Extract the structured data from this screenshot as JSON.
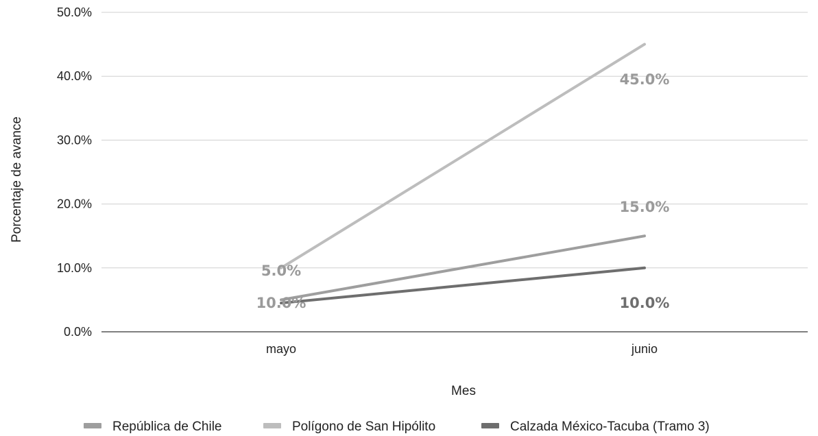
{
  "chart_data": {
    "type": "line",
    "title": "",
    "xlabel": "Mes",
    "ylabel": "Porcentaje de avance",
    "categories": [
      "mayo",
      "junio"
    ],
    "ylim": [
      0,
      0.5
    ],
    "yticks": [
      "0.0%",
      "10.0%",
      "20.0%",
      "30.0%",
      "40.0%",
      "50.0%"
    ],
    "grid": true,
    "legend": "bottom",
    "series": [
      {
        "name": "República de Chile",
        "values": [
          0.05,
          0.15
        ],
        "labels": [
          "5.0%",
          "15.0%"
        ],
        "color": "#9e9e9e"
      },
      {
        "name": "Polígono de San Hipólito",
        "values": [
          0.1,
          0.45
        ],
        "labels": [
          "10.0%",
          "45.0%"
        ],
        "color": "#bdbdbd"
      },
      {
        "name": "Calzada México-Tacuba (Tramo 3)",
        "values": [
          0.045,
          0.1
        ],
        "labels": [
          "",
          "10.0%"
        ],
        "color": "#6e6e6e"
      }
    ]
  }
}
